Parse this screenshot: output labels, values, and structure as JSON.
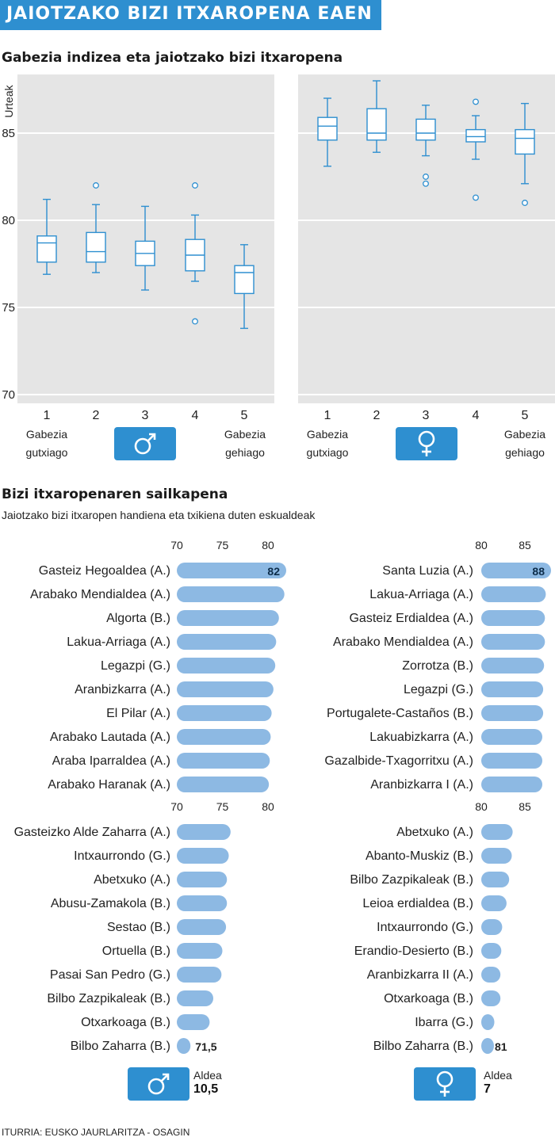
{
  "header": {
    "title": "JAIOTZAKO BIZI ITXAROPENA EAEN"
  },
  "source": "ITURRIA: EUSKO JAURLARITZA - OSAGIN",
  "colors": {
    "accent": "#2e8fd0",
    "panel": "#e5e5e5",
    "bar": "#8db9e3",
    "box_stroke": "#2e8fd0"
  },
  "chart_data": [
    {
      "type": "box",
      "title": "Gabezia indizea eta jaiotzako bizi itxaropena",
      "ylabel": "Urteak",
      "ylim": [
        70,
        88
      ],
      "yticks": [
        70,
        75,
        80,
        85
      ],
      "categories": [
        "1",
        "2",
        "3",
        "4",
        "5"
      ],
      "endpoint_labels": {
        "low": "Gabezia gutxiago",
        "high": "Gabezia gehiago"
      },
      "panels": [
        {
          "sex": "male",
          "sex_icon": "male-symbol-icon",
          "boxes": [
            {
              "category": "1",
              "whisker_low": 76.9,
              "q1": 77.6,
              "median": 78.7,
              "q3": 79.1,
              "whisker_high": 81.2,
              "outliers": []
            },
            {
              "category": "2",
              "whisker_low": 77.0,
              "q1": 77.6,
              "median": 78.2,
              "q3": 79.3,
              "whisker_high": 80.9,
              "outliers": [
                82.0
              ]
            },
            {
              "category": "3",
              "whisker_low": 76.0,
              "q1": 77.4,
              "median": 78.1,
              "q3": 78.8,
              "whisker_high": 80.8,
              "outliers": []
            },
            {
              "category": "4",
              "whisker_low": 76.5,
              "q1": 77.1,
              "median": 78.0,
              "q3": 78.9,
              "whisker_high": 80.3,
              "outliers": [
                82.0,
                74.2
              ]
            },
            {
              "category": "5",
              "whisker_low": 73.8,
              "q1": 75.8,
              "median": 77.0,
              "q3": 77.4,
              "whisker_high": 78.6,
              "outliers": []
            }
          ]
        },
        {
          "sex": "female",
          "sex_icon": "female-symbol-icon",
          "boxes": [
            {
              "category": "1",
              "whisker_low": 83.1,
              "q1": 84.6,
              "median": 85.4,
              "q3": 85.9,
              "whisker_high": 87.0,
              "outliers": []
            },
            {
              "category": "2",
              "whisker_low": 83.9,
              "q1": 84.6,
              "median": 85.0,
              "q3": 86.4,
              "whisker_high": 88.0,
              "outliers": []
            },
            {
              "category": "3",
              "whisker_low": 83.7,
              "q1": 84.6,
              "median": 85.0,
              "q3": 85.8,
              "whisker_high": 86.6,
              "outliers": [
                82.5,
                82.1
              ]
            },
            {
              "category": "4",
              "whisker_low": 83.5,
              "q1": 84.5,
              "median": 84.8,
              "q3": 85.2,
              "whisker_high": 86.0,
              "outliers": [
                86.8,
                81.3
              ]
            },
            {
              "category": "5",
              "whisker_low": 82.1,
              "q1": 83.8,
              "median": 84.7,
              "q3": 85.2,
              "whisker_high": 86.7,
              "outliers": [
                81.0
              ]
            }
          ]
        }
      ]
    },
    {
      "type": "bar",
      "orientation": "horizontal",
      "title": "Bizi itxaropenaren sailkapena",
      "subtitle": "Jaiotzako bizi itxaropen handiena eta txikiena duten eskualdeak",
      "aldea_label": "Aldea",
      "panels": [
        {
          "sex": "male",
          "sex_icon": "male-symbol-icon",
          "axis_ticks": [
            70,
            75,
            80
          ],
          "xlim": [
            70,
            82
          ],
          "difference": "10,5",
          "top": [
            {
              "name": "Gasteiz Hegoaldea (A.)",
              "value": 82,
              "label": "82"
            },
            {
              "name": "Arabako Mendialdea (A.)",
              "value": 81.8
            },
            {
              "name": "Algorta (B.)",
              "value": 81.2
            },
            {
              "name": "Lakua-Arriaga (A.)",
              "value": 80.9
            },
            {
              "name": "Legazpi (G.)",
              "value": 80.8
            },
            {
              "name": "Aranbizkarra (A.)",
              "value": 80.6
            },
            {
              "name": "El Pilar (A.)",
              "value": 80.4
            },
            {
              "name": "Arabako Lautada (A.)",
              "value": 80.3
            },
            {
              "name": "Araba Iparraldea (A.)",
              "value": 80.2
            },
            {
              "name": "Arabako Haranak (A.)",
              "value": 80.1
            }
          ],
          "bottom": [
            {
              "name": "Gasteizko Alde Zaharra (A.)",
              "value": 75.9
            },
            {
              "name": "Intxaurrondo (G.)",
              "value": 75.7
            },
            {
              "name": "Abetxuko (A.)",
              "value": 75.5
            },
            {
              "name": "Abusu-Zamakola (B.)",
              "value": 75.5
            },
            {
              "name": "Sestao (B.)",
              "value": 75.4
            },
            {
              "name": "Ortuella (B.)",
              "value": 75.0
            },
            {
              "name": "Pasai San Pedro (G.)",
              "value": 74.9
            },
            {
              "name": "Bilbo Zazpikaleak (B.)",
              "value": 74.0
            },
            {
              "name": "Otxarkoaga (B.)",
              "value": 73.6
            },
            {
              "name": "Bilbo Zaharra (B.)",
              "value": 71.5,
              "label": "71,5"
            }
          ]
        },
        {
          "sex": "female",
          "sex_icon": "female-symbol-icon",
          "axis_ticks": [
            80,
            85
          ],
          "xlim": [
            80,
            88
          ],
          "difference": "7",
          "top": [
            {
              "name": "Santa Luzia (A.)",
              "value": 88,
              "label": "88"
            },
            {
              "name": "Lakua-Arriaga (A.)",
              "value": 87.4
            },
            {
              "name": "Gasteiz Erdialdea (A.)",
              "value": 87.3
            },
            {
              "name": "Arabako Mendialdea (A.)",
              "value": 87.3
            },
            {
              "name": "Zorrotza (B.)",
              "value": 87.2
            },
            {
              "name": "Legazpi (G.)",
              "value": 87.1
            },
            {
              "name": "Portugalete-Castaños (B.)",
              "value": 87.1
            },
            {
              "name": "Lakuabizkarra (A.)",
              "value": 87.0
            },
            {
              "name": "Gazalbide-Txagorritxu (A.)",
              "value": 87.0
            },
            {
              "name": "Aranbizkarra I (A.)",
              "value": 87.0
            }
          ],
          "bottom": [
            {
              "name": "Abetxuko (A.)",
              "value": 83.6
            },
            {
              "name": "Abanto-Muskiz (B.)",
              "value": 83.5
            },
            {
              "name": "Bilbo Zazpikaleak (B.)",
              "value": 83.2
            },
            {
              "name": "Leioa erdialdea (B.)",
              "value": 82.9
            },
            {
              "name": "Intxaurrondo (G.)",
              "value": 82.4
            },
            {
              "name": "Erandio-Desierto (B.)",
              "value": 82.3
            },
            {
              "name": "Aranbizkarra II (A.)",
              "value": 82.2
            },
            {
              "name": "Otxarkoaga (B.)",
              "value": 82.2
            },
            {
              "name": "Ibarra (G.)",
              "value": 81.5
            },
            {
              "name": "Bilbo Zaharra (B.)",
              "value": 81,
              "label": "81"
            }
          ]
        }
      ]
    }
  ]
}
